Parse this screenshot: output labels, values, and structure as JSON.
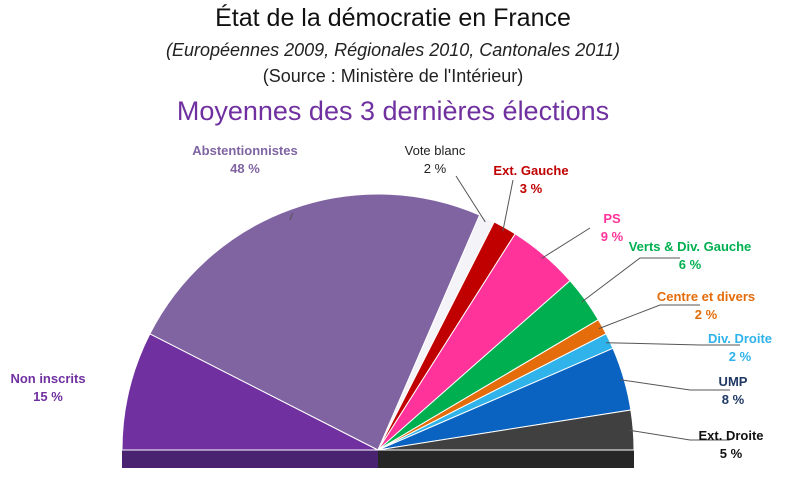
{
  "title": "État de la démocratie  en France",
  "subtitle": "(Européennes  2009, Régionales 2010, Cantonales 2011)",
  "source": "(Source : Ministère de l'Intérieur)",
  "chart_data": {
    "type": "pie",
    "variant": "semicircle",
    "title": "Moyennes des 3 dernières élections",
    "unit": "%",
    "slices": [
      {
        "name": "Non inscrits",
        "value": 15,
        "label": "15 %",
        "color": "#7030a0"
      },
      {
        "name": "Abstentionnistes",
        "value": 48,
        "label": "48 %",
        "color": "#8064a2"
      },
      {
        "name": "Vote blanc",
        "value": 2,
        "label": "2 %",
        "color": "#f4f4f8"
      },
      {
        "name": "Ext. Gauche",
        "value": 3,
        "label": "3 %",
        "color": "#c00000"
      },
      {
        "name": "PS",
        "value": 9,
        "label": "9 %",
        "color": "#ff3399"
      },
      {
        "name": "Verts & Div. Gauche",
        "value": 6,
        "label": "6 %",
        "color": "#00b050"
      },
      {
        "name": "Centre et divers",
        "value": 2,
        "label": "2 %",
        "color": "#e46c0a"
      },
      {
        "name": "Div. Droite",
        "value": 2,
        "label": "2 %",
        "color": "#2fb3ea"
      },
      {
        "name": "UMP",
        "value": 8,
        "label": "8 %",
        "color": "#0a63c0"
      },
      {
        "name": "Ext. Droite",
        "value": 5,
        "label": "5 %",
        "color": "#404040"
      }
    ],
    "label_colors": [
      "#7030a0",
      "#8064a2",
      "#222222",
      "#c00000",
      "#ff3399",
      "#00b050",
      "#e46c0a",
      "#2fb3ea",
      "#1f3864",
      "#111111"
    ]
  }
}
